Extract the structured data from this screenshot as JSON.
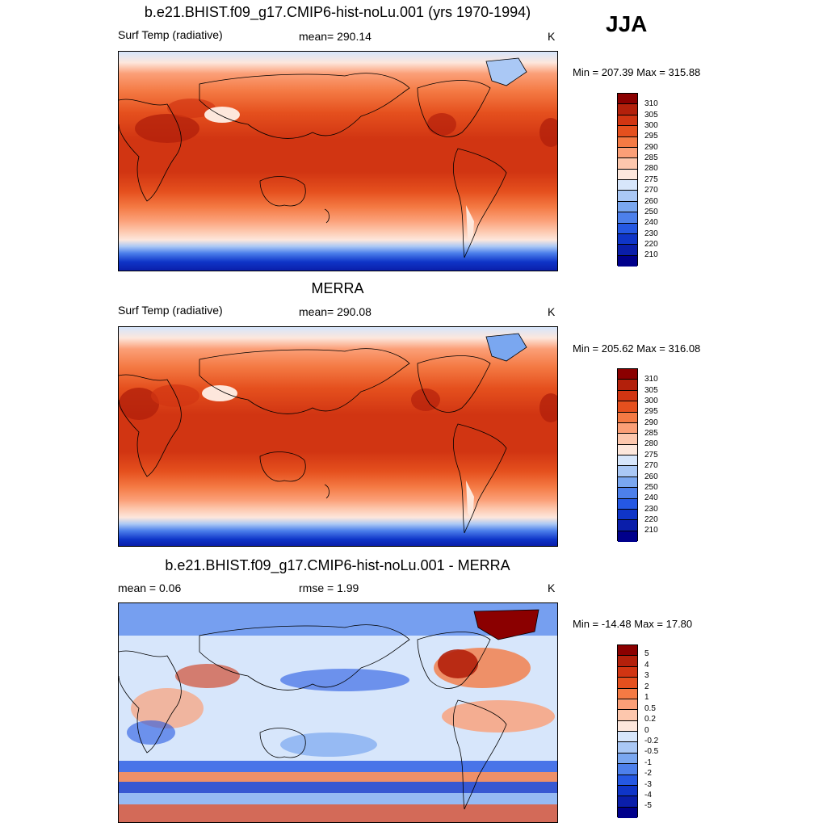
{
  "season": "JJA",
  "panels": [
    {
      "id": "model",
      "title": "b.e21.BHIST.f09_g17.CMIP6-hist-noLu.001 (yrs 1970-1994)",
      "left_label": "Surf Temp (radiative)",
      "center_label": "mean= 290.14",
      "units": "K",
      "minmax": "Min = 207.39 Max = 315.88",
      "colorbar": {
        "levels": [
          "310",
          "305",
          "300",
          "295",
          "290",
          "285",
          "280",
          "275",
          "270",
          "260",
          "250",
          "240",
          "230",
          "220",
          "210"
        ],
        "colors": [
          "#8b0000",
          "#b3200b",
          "#d13512",
          "#e5501e",
          "#f47a44",
          "#fb9f77",
          "#fdc7ad",
          "#fde7dc",
          "#d7e6fb",
          "#aac8f5",
          "#7aa7f0",
          "#4d80eb",
          "#2558e3",
          "#0f35c8",
          "#0a1eaa",
          "#00008b"
        ]
      }
    },
    {
      "id": "obs",
      "title": "MERRA",
      "left_label": "Surf Temp (radiative)",
      "center_label": "mean= 290.08",
      "units": "K",
      "minmax": "Min = 205.62 Max = 316.08",
      "colorbar": {
        "levels": [
          "310",
          "305",
          "300",
          "295",
          "290",
          "285",
          "280",
          "275",
          "270",
          "260",
          "250",
          "240",
          "230",
          "220",
          "210"
        ],
        "colors": [
          "#8b0000",
          "#b3200b",
          "#d13512",
          "#e5501e",
          "#f47a44",
          "#fb9f77",
          "#fdc7ad",
          "#fde7dc",
          "#d7e6fb",
          "#aac8f5",
          "#7aa7f0",
          "#4d80eb",
          "#2558e3",
          "#0f35c8",
          "#0a1eaa",
          "#00008b"
        ]
      }
    },
    {
      "id": "diff",
      "title": "b.e21.BHIST.f09_g17.CMIP6-hist-noLu.001 - MERRA",
      "left_label": "mean =   0.06",
      "center_label": "rmse =   1.99",
      "units": "K",
      "minmax": "Min = -14.48 Max =  17.80",
      "colorbar": {
        "levels": [
          "5",
          "4",
          "3",
          "2",
          "1",
          "0.5",
          "0.2",
          "0",
          "-0.2",
          "-0.5",
          "-1",
          "-2",
          "-3",
          "-4",
          "-5"
        ],
        "colors": [
          "#8b0000",
          "#b3200b",
          "#d13512",
          "#e5501e",
          "#f47a44",
          "#fb9f77",
          "#fdc7ad",
          "#fde7dc",
          "#d7e6fb",
          "#aac8f5",
          "#7aa7f0",
          "#4d80eb",
          "#2558e3",
          "#0f35c8",
          "#0a1eaa",
          "#00008b"
        ]
      }
    }
  ]
}
